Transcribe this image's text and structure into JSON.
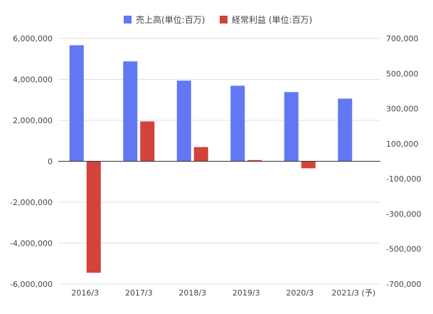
{
  "chart_data": {
    "type": "bar",
    "categories": [
      "2016/3",
      "2017/3",
      "2018/3",
      "2019/3",
      "2020/3",
      "2021/3 (予)"
    ],
    "series": [
      {
        "name": "売上高(単位:百万)",
        "axis": "left",
        "color": "#6178f2",
        "values": [
          5670000,
          4880000,
          3940000,
          3690000,
          3380000,
          3060000
        ]
      },
      {
        "name": "経常利益 (単位:百万)",
        "axis": "right",
        "color": "#d2433a",
        "values": [
          -635000,
          227000,
          81000,
          7000,
          -40000,
          null
        ]
      }
    ],
    "y_left": {
      "ylim": [
        -6000000,
        6000000
      ],
      "ticks": [
        6000000,
        4000000,
        2000000,
        0,
        -2000000,
        -4000000,
        -6000000
      ],
      "tick_labels": [
        "6,000,000",
        "4,000,000",
        "2,000,000",
        "0",
        "-2,000,000",
        "-4,000,000",
        "-6,000,000"
      ]
    },
    "y_right": {
      "ylim": [
        -700000,
        700000
      ],
      "ticks": [
        700000,
        500000,
        300000,
        100000,
        -100000,
        -300000,
        -500000,
        -700000
      ],
      "tick_labels": [
        "700,000",
        "500,000",
        "300,000",
        "100,000",
        "-100,000",
        "-300,000",
        "-500,000",
        "-700,000"
      ]
    },
    "grid": true,
    "legend_position": "top"
  }
}
